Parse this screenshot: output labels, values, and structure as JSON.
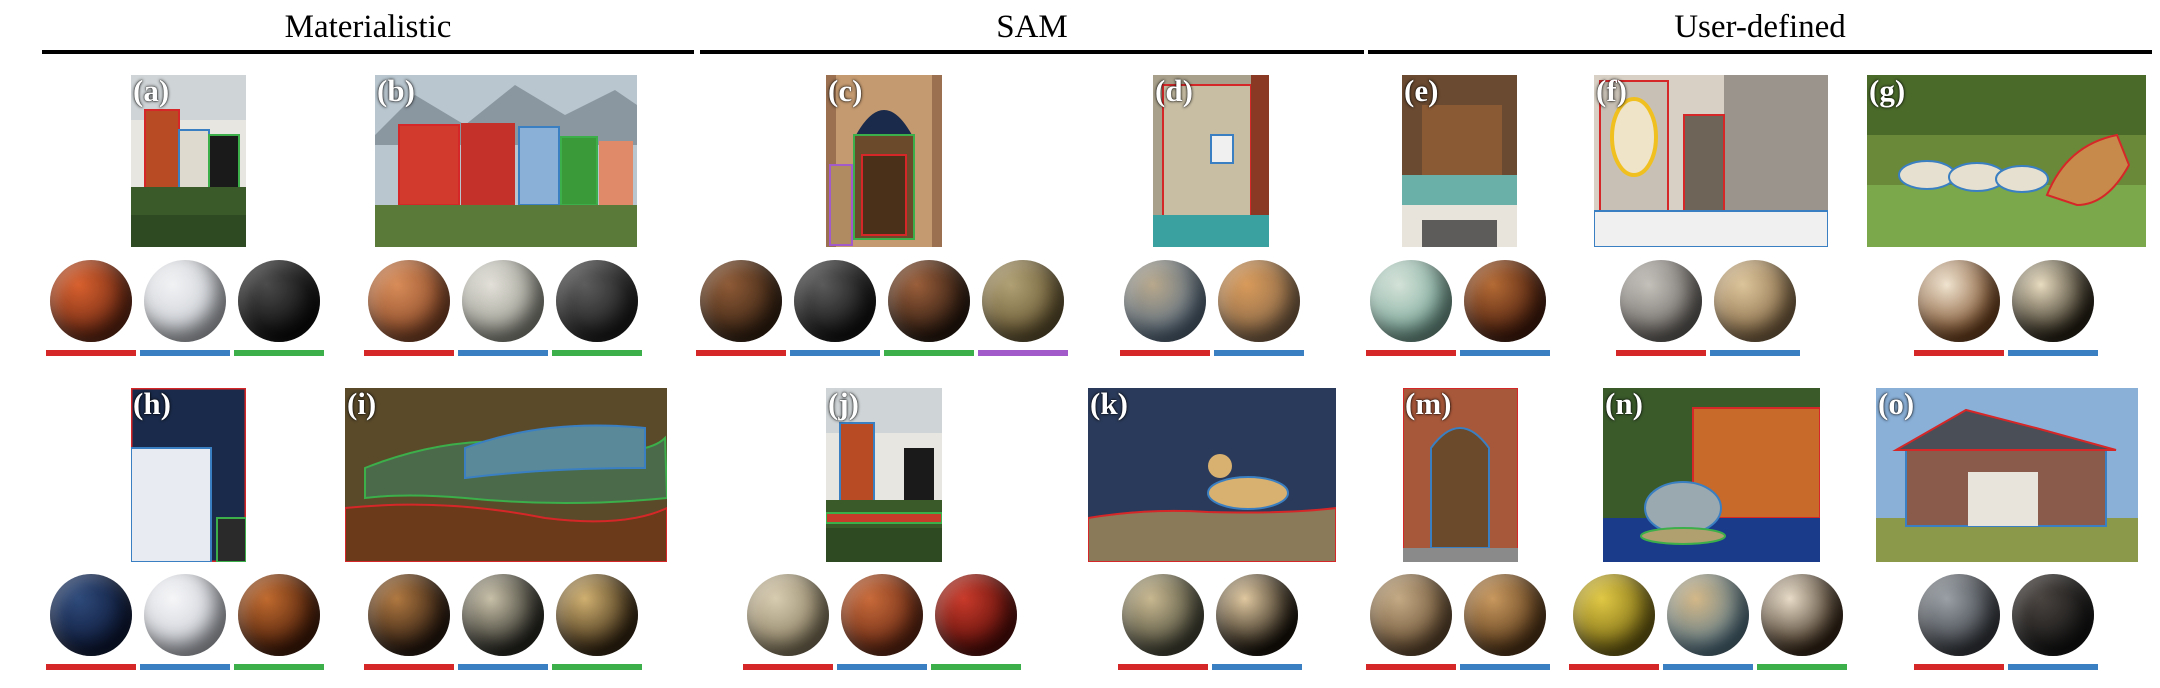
{
  "headers": [
    "Materialistic",
    "SAM",
    "User-defined"
  ],
  "colors": {
    "red": "#d62728",
    "blue": "#3a7fc1",
    "green": "#3cae4a",
    "purple": "#a259c9"
  },
  "panels": [
    {
      "label": "(a)",
      "scene": "townhouse",
      "masks": [
        "red",
        "blue",
        "green"
      ],
      "spheres": [
        [
          "#6e2a14",
          "#d8602e"
        ],
        [
          "#c8ccd2",
          "#f1f2f4"
        ],
        [
          "#0d0d0d",
          "#4a4a4a"
        ]
      ]
    },
    {
      "label": "(b)",
      "scene": "facades",
      "masks": [
        "red",
        "blue",
        "green"
      ],
      "spheres": [
        [
          "#8c4b2a",
          "#d88c58"
        ],
        [
          "#9a9a90",
          "#e2e0d8"
        ],
        [
          "#1e1e1e",
          "#5c5c5c"
        ]
      ]
    },
    {
      "label": "(c)",
      "scene": "doorway",
      "masks": [
        "red",
        "blue",
        "green",
        "purple"
      ],
      "spheres": [
        [
          "#3a2414",
          "#8e5a36"
        ],
        [
          "#141414",
          "#5a5a5a"
        ],
        [
          "#2c1a10",
          "#9a5e3a"
        ],
        [
          "#6a5a34",
          "#b0a074"
        ]
      ]
    },
    {
      "label": "(d)",
      "scene": "wall",
      "masks": [
        "red",
        "blue"
      ],
      "spheres": [
        [
          "#5a6e82",
          "#b8a88c"
        ],
        [
          "#8a6a4a",
          "#d89a5a"
        ]
      ]
    },
    {
      "label": "(e)",
      "scene": "cafe",
      "masks": [
        "red",
        "blue"
      ],
      "spheres": [
        [
          "#7aa89a",
          "#d4e2d8"
        ],
        [
          "#4a1e0e",
          "#b46a34"
        ]
      ]
    },
    {
      "label": "(f)",
      "scene": "bathroom",
      "masks": [
        "red",
        "blue"
      ],
      "spheres": [
        [
          "#6e6a66",
          "#c4c0ba"
        ],
        [
          "#8a6e4a",
          "#dcc49a"
        ]
      ]
    },
    {
      "label": "(g)",
      "scene": "safari",
      "masks": [
        "red",
        "blue"
      ],
      "spheres": [
        [
          "#7a4a24",
          "#f0e4d0"
        ],
        [
          "#2a2418",
          "#e8dcc0"
        ]
      ]
    },
    {
      "label": "(h)",
      "scene": "bedroom",
      "masks": [
        "red",
        "blue",
        "green"
      ],
      "spheres": [
        [
          "#0e1a3a",
          "#2e4a7a"
        ],
        [
          "#c8ccd4",
          "#f6f6f8"
        ],
        [
          "#4a1e0a",
          "#c06a2e"
        ]
      ]
    },
    {
      "label": "(i)",
      "scene": "crocodile",
      "masks": [
        "red",
        "blue",
        "green"
      ],
      "spheres": [
        [
          "#2a1a10",
          "#b07840"
        ],
        [
          "#2a2a24",
          "#c8c0a8"
        ],
        [
          "#3a2a14",
          "#d0b070"
        ]
      ]
    },
    {
      "label": "(j)",
      "scene": "townhouse2",
      "masks": [
        "red",
        "blue",
        "green"
      ],
      "spheres": [
        [
          "#8a7e62",
          "#d8ccb0"
        ],
        [
          "#6a2a14",
          "#c86a3a"
        ],
        [
          "#5a0e0a",
          "#c83a2a"
        ]
      ]
    },
    {
      "label": "(k)",
      "scene": "cheetah",
      "masks": [
        "red",
        "blue"
      ],
      "spheres": [
        [
          "#4a4a3a",
          "#c8b890"
        ],
        [
          "#1a140c",
          "#e0c8a0"
        ]
      ]
    },
    {
      "label": "(m)",
      "scene": "arch",
      "masks": [
        "red",
        "blue"
      ],
      "spheres": [
        [
          "#6a5034",
          "#c4aa84"
        ],
        [
          "#5a3a1a",
          "#c8985e"
        ]
      ]
    },
    {
      "label": "(n)",
      "scene": "loft",
      "masks": [
        "red",
        "blue",
        "green"
      ],
      "spheres": [
        [
          "#7a6a14",
          "#e0c844"
        ],
        [
          "#5a7a8a",
          "#d4b888"
        ],
        [
          "#3a2a1a",
          "#e8dcc8"
        ]
      ]
    },
    {
      "label": "(o)",
      "scene": "house",
      "masks": [
        "red",
        "blue"
      ],
      "spheres": [
        [
          "#3a3e44",
          "#9aa0a6"
        ],
        [
          "#141414",
          "#4a4440"
        ]
      ]
    }
  ]
}
